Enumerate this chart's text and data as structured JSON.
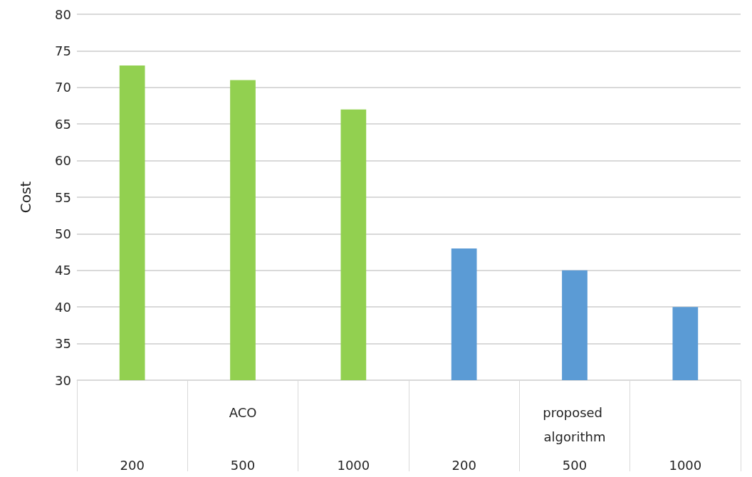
{
  "chart_data": {
    "type": "bar",
    "ylabel": "Cost",
    "categories": [
      "200",
      "500",
      "1000",
      "200",
      "500",
      "1000"
    ],
    "series": [
      {
        "name": "ACO",
        "color": "#92d050",
        "values": [
          73,
          71,
          67,
          null,
          null,
          null
        ]
      },
      {
        "name": "proposed algorithm",
        "color": "#5b9bd5",
        "values": [
          null,
          null,
          null,
          48,
          45,
          40
        ]
      }
    ],
    "ylim": [
      30,
      80
    ],
    "yticks": [
      30,
      35,
      40,
      45,
      50,
      55,
      60,
      65,
      70,
      75,
      80
    ],
    "grid": "y",
    "legend": false
  }
}
